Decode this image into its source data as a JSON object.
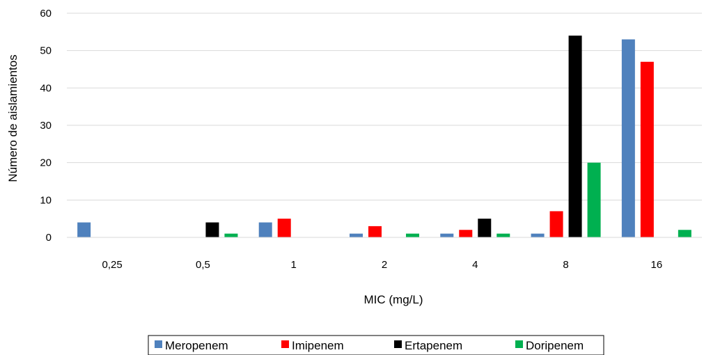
{
  "chart_data": {
    "type": "bar",
    "title": "",
    "xlabel": "MIC (mg/L)",
    "ylabel": "Número de aislamientos",
    "categories": [
      "0,25",
      "0,5",
      "1",
      "2",
      "4",
      "8",
      "16"
    ],
    "ylim": [
      0,
      60
    ],
    "yticks": [
      "0",
      "10",
      "20",
      "30",
      "40",
      "50",
      "60"
    ],
    "grid": true,
    "legend_position": "bottom",
    "series": [
      {
        "name": "Meropenem",
        "color": "#4f81bd",
        "values": [
          4,
          0,
          4,
          1,
          1,
          1,
          53
        ]
      },
      {
        "name": "Imipenem",
        "color": "#ff0000",
        "values": [
          0,
          0,
          5,
          3,
          2,
          7,
          47
        ]
      },
      {
        "name": "Ertapenem",
        "color": "#000000",
        "values": [
          0,
          4,
          0,
          0,
          5,
          54,
          0
        ]
      },
      {
        "name": "Doripenem",
        "color": "#00b050",
        "values": [
          0,
          1,
          0,
          1,
          1,
          20,
          2
        ]
      }
    ]
  }
}
